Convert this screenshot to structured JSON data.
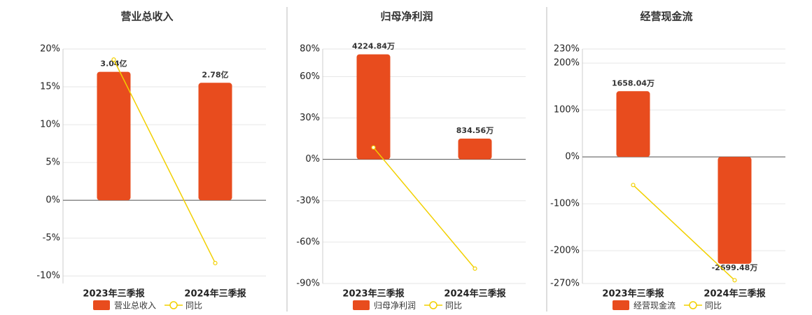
{
  "chart_data": [
    {
      "type": "bar-line",
      "title": "营业总收入",
      "categories": [
        "2023年三季报",
        "2024年三季报"
      ],
      "series": [
        {
          "name": "营业总收入",
          "type": "bar",
          "axis": "y2",
          "color": "#e84c1e",
          "values": [
            3.04,
            2.78
          ],
          "value_labels": [
            "3.04亿",
            "2.78亿"
          ]
        },
        {
          "name": "同比",
          "type": "line",
          "color": "#f2d000",
          "values": [
            18.6,
            -8.3
          ]
        }
      ],
      "ylim": [
        -11,
        20
      ],
      "yticks": [
        {
          "value": -10,
          "label": "-10%"
        },
        {
          "value": -5,
          "label": "-5%"
        },
        {
          "value": 0,
          "label": "0%"
        },
        {
          "value": 5,
          "label": "5%"
        },
        {
          "value": 10,
          "label": "10%"
        },
        {
          "value": 15,
          "label": "15%"
        },
        {
          "value": 20,
          "label": "20%"
        }
      ],
      "y2lim": [
        -1.97,
        3.58
      ],
      "grid": true
    },
    {
      "type": "bar-line",
      "title": "归母净利润",
      "categories": [
        "2023年三季报",
        "2024年三季报"
      ],
      "series": [
        {
          "name": "归母净利润",
          "type": "bar",
          "axis": "y2",
          "color": "#e84c1e",
          "values": [
            4224.84,
            834.56
          ],
          "value_labels": [
            "4224.84万",
            "834.56万"
          ]
        },
        {
          "name": "同比",
          "type": "line",
          "color": "#f2d000",
          "values": [
            8.6,
            -79.2
          ]
        }
      ],
      "ylim": [
        -90,
        80
      ],
      "yticks": [
        {
          "value": -90,
          "label": "-90%"
        },
        {
          "value": -60,
          "label": "-60%"
        },
        {
          "value": -30,
          "label": "-30%"
        },
        {
          "value": 0,
          "label": "0%"
        },
        {
          "value": 30,
          "label": "30%"
        },
        {
          "value": 60,
          "label": "60%"
        },
        {
          "value": 80,
          "label": "80%"
        }
      ],
      "y2lim": [
        -4995,
        4440
      ],
      "grid": true
    },
    {
      "type": "bar-line",
      "title": "经营现金流",
      "categories": [
        "2023年三季报",
        "2024年三季报"
      ],
      "series": [
        {
          "name": "经营现金流",
          "type": "bar",
          "axis": "y2",
          "color": "#e84c1e",
          "values": [
            1658.04,
            -2699.48
          ],
          "value_labels": [
            "1658.04万",
            "-2699.48万"
          ]
        },
        {
          "name": "同比",
          "type": "line",
          "color": "#f2d000",
          "values": [
            -60,
            -263
          ]
        }
      ],
      "ylim": [
        -270,
        230
      ],
      "yticks": [
        {
          "value": -270,
          "label": "-270%"
        },
        {
          "value": -200,
          "label": "-200%"
        },
        {
          "value": -100,
          "label": "-100%"
        },
        {
          "value": 0,
          "label": "0%"
        },
        {
          "value": 100,
          "label": "100%"
        },
        {
          "value": 200,
          "label": "200%"
        },
        {
          "value": 230,
          "label": "230%"
        }
      ],
      "y2lim": [
        -3197,
        2724
      ],
      "grid": true
    }
  ]
}
